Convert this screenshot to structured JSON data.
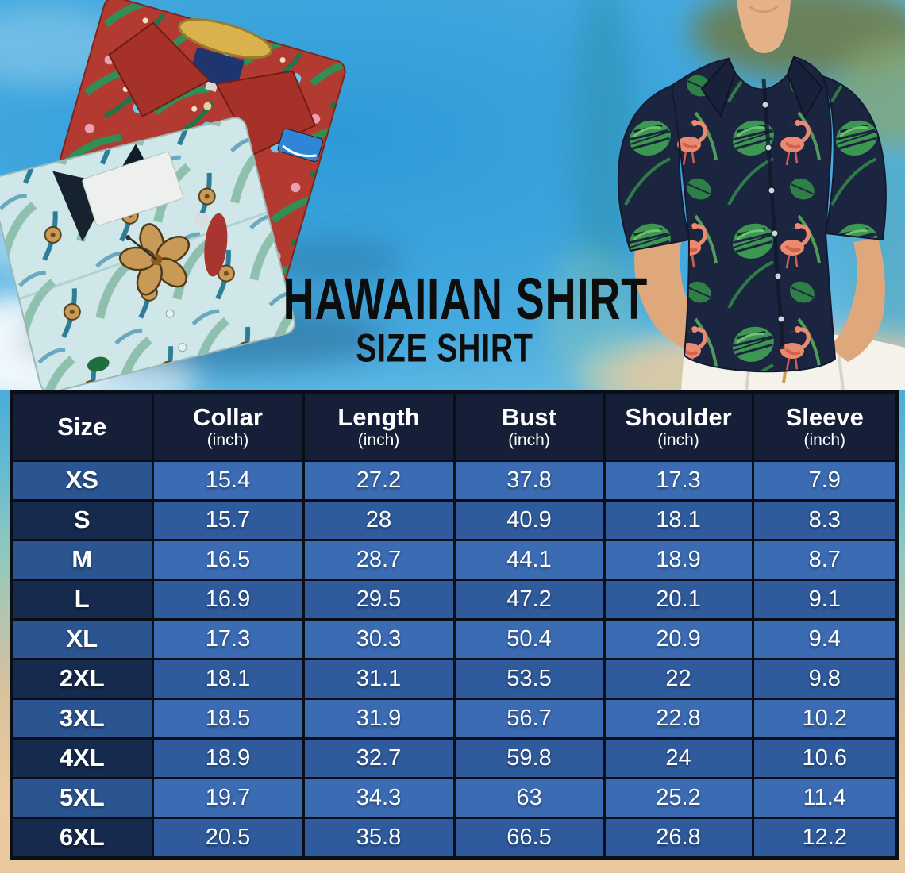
{
  "title": {
    "line1": "HAWAIIAN SHIRT",
    "line2": "SIZE SHIRT"
  },
  "chart_data": {
    "type": "table",
    "title": "HAWAIIAN SHIRT",
    "subtitle": "SIZE SHIRT",
    "unit": "inch",
    "columns": [
      {
        "label": "Size",
        "sub": ""
      },
      {
        "label": "Collar",
        "sub": "(inch)"
      },
      {
        "label": "Length",
        "sub": "(inch)"
      },
      {
        "label": "Bust",
        "sub": "(inch)"
      },
      {
        "label": "Shoulder",
        "sub": "(inch)"
      },
      {
        "label": "Sleeve",
        "sub": "(inch)"
      }
    ],
    "rows": [
      {
        "size": "XS",
        "values": [
          "15.4",
          "27.2",
          "37.8",
          "17.3",
          "7.9"
        ]
      },
      {
        "size": "S",
        "values": [
          "15.7",
          "28",
          "40.9",
          "18.1",
          "8.3"
        ]
      },
      {
        "size": "M",
        "values": [
          "16.5",
          "28.7",
          "44.1",
          "18.9",
          "8.7"
        ]
      },
      {
        "size": "L",
        "values": [
          "16.9",
          "29.5",
          "47.2",
          "20.1",
          "9.1"
        ]
      },
      {
        "size": "XL",
        "values": [
          "17.3",
          "30.3",
          "50.4",
          "20.9",
          "9.4"
        ]
      },
      {
        "size": "2XL",
        "values": [
          "18.1",
          "31.1",
          "53.5",
          "22",
          "9.8"
        ]
      },
      {
        "size": "3XL",
        "values": [
          "18.5",
          "31.9",
          "56.7",
          "22.8",
          "10.2"
        ]
      },
      {
        "size": "4XL",
        "values": [
          "18.9",
          "32.7",
          "59.8",
          "24",
          "10.6"
        ]
      },
      {
        "size": "5XL",
        "values": [
          "19.7",
          "34.3",
          "63",
          "25.2",
          "11.4"
        ]
      },
      {
        "size": "6XL",
        "values": [
          "20.5",
          "35.8",
          "66.5",
          "26.8",
          "12.2"
        ]
      }
    ]
  },
  "colors": {
    "header_bg": "#151f38",
    "row_light": "#3a6bb3",
    "row_dark": "#2f5b9d",
    "size_cell_light": "#2b5590",
    "size_cell_dark": "#152a4c",
    "cell_border": "#0a0e17",
    "table_text": "#ffffff",
    "title_text": "#0d0d0d",
    "sky_blue": "#2d9ad7",
    "sand": "#e9c89e"
  }
}
